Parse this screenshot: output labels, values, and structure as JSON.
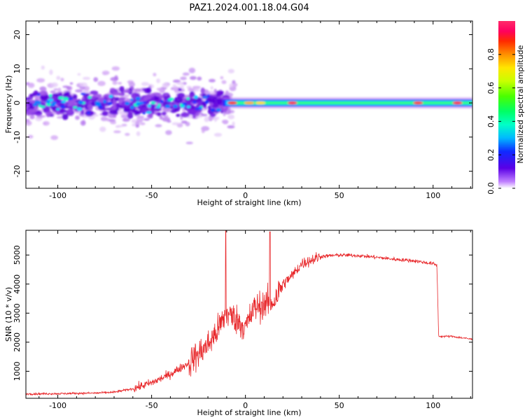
{
  "title": "PAZ1.2024.001.18.04.G04",
  "chart_data": [
    {
      "type": "heatmap",
      "xlabel": "Height of straight line (km)",
      "ylabel": "Frequency (Hz)",
      "xlim": [
        -117,
        121
      ],
      "ylim": [
        -25,
        24
      ],
      "xticks": [
        -100,
        -50,
        0,
        50,
        100
      ],
      "yticks": [
        -20,
        -10,
        0,
        10,
        20
      ],
      "colorbar": {
        "label": "Normalized spectral amplitude",
        "range": [
          0,
          1
        ],
        "ticks": [
          0.0,
          0.2,
          0.4,
          0.6,
          0.8
        ],
        "colormap": "gist_ncar-like"
      },
      "features": {
        "scatter_region_km": [
          -117,
          -10
        ],
        "scatter_center_hz": 0,
        "tone_region_km": [
          -12,
          121
        ],
        "tone_hz": 0
      }
    },
    {
      "type": "line",
      "xlabel": "Height of straight line (km)",
      "ylabel": "SNR (10 * v/v)",
      "xlim": [
        -117,
        121
      ],
      "ylim": [
        70,
        5850
      ],
      "xticks": [
        -100,
        -50,
        0,
        50,
        100
      ],
      "yticks": [
        1000,
        2000,
        3000,
        4000,
        5000
      ],
      "series_color": "#e8272a",
      "profile": {
        "x": [
          -117,
          -100,
          -80,
          -70,
          -60,
          -50,
          -40,
          -30,
          -20,
          -15,
          -10,
          -5,
          0,
          5,
          10,
          15,
          20,
          25,
          30,
          40,
          50,
          60,
          70,
          80,
          90,
          100,
          102,
          103,
          110,
          121
        ],
        "y": [
          220,
          230,
          250,
          280,
          400,
          600,
          900,
          1300,
          1900,
          2400,
          3000,
          2800,
          2500,
          3200,
          3300,
          3400,
          4000,
          4300,
          4700,
          4950,
          5000,
          4980,
          4920,
          4850,
          4800,
          4700,
          4650,
          2200,
          2200,
          2100
        ]
      },
      "spikes": [
        {
          "x": -10.5,
          "y": 5850
        },
        {
          "x": 13,
          "y": 5800
        }
      ]
    }
  ]
}
